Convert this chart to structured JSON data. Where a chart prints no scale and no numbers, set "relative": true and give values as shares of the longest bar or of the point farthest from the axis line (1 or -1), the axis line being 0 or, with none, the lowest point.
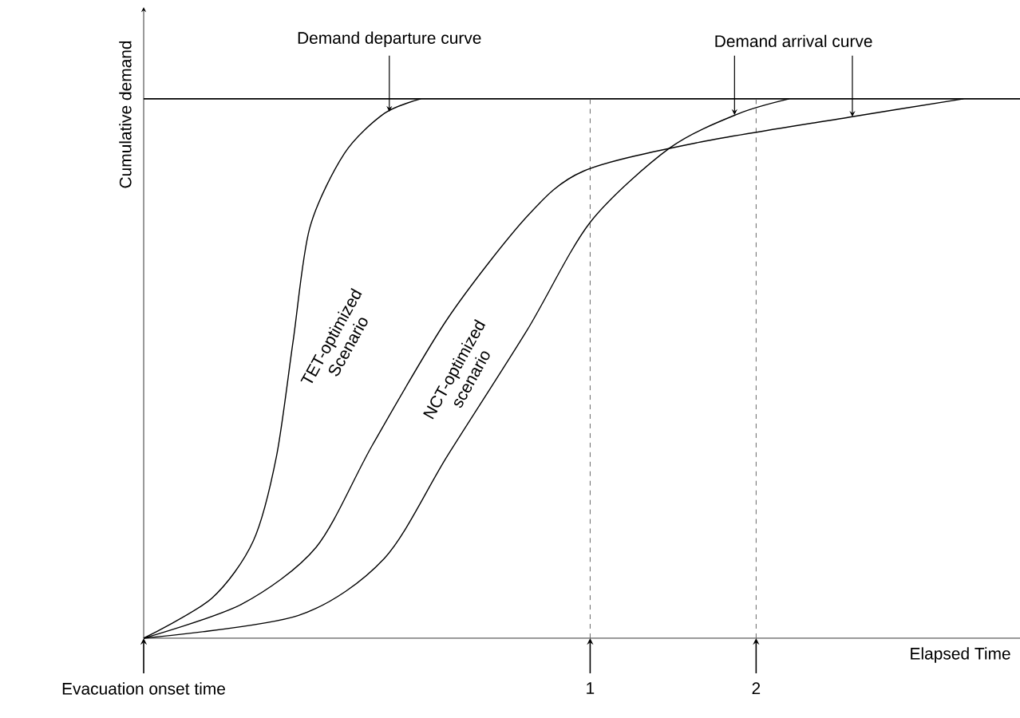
{
  "chart_data": {
    "type": "line",
    "relative": true,
    "ylabel": "Cumulative demand",
    "xlabel": "Elapsed Time",
    "marker": "none",
    "line_style": "solid",
    "grid": false,
    "xlim": [
      -1.69,
      3.59
    ],
    "xticks": [
      {
        "value": -1.69,
        "label": "Evacuation onset time"
      },
      1,
      2
    ],
    "series": [
      {
        "color": "#000000",
        "x": [
          -1.69,
          -1.28,
          -1.03,
          -0.89,
          -0.79,
          -0.69,
          -0.48,
          -0.24,
          -0.02
        ],
        "values": [
          0,
          0.074,
          0.18,
          0.337,
          0.55,
          0.76,
          0.899,
          0.973,
          1
        ]
      },
      {
        "color": "#000000",
        "x": [
          -1.69,
          -1.1,
          -0.65,
          -0.31,
          0.14,
          0.62,
          0.96,
          1.65,
          2.58,
          3.25
        ],
        "values": [
          0,
          0.063,
          0.169,
          0.359,
          0.592,
          0.782,
          0.866,
          0.919,
          0.967,
          1
        ]
      },
      {
        "color": "#000000",
        "x": [
          -1.69,
          -0.76,
          -0.24,
          0.14,
          0.62,
          1.0,
          1.48,
          1.89,
          2.2
        ],
        "values": [
          0,
          0.042,
          0.148,
          0.338,
          0.571,
          0.771,
          0.909,
          0.972,
          1
        ]
      }
    ],
    "ref_lines": [
      {
        "axis": "y",
        "value": 1,
        "line_style": "solid"
      },
      {
        "axis": "x",
        "value": 1,
        "line_style": "dashed"
      },
      {
        "axis": "x",
        "value": 2,
        "line_style": "dashed"
      }
    ],
    "annotations": [
      {
        "text": "Demand departure curve",
        "x": -0.21,
        "y": 0.976
      },
      {
        "text": "Demand arrival curve",
        "x": 1.87,
        "y": 0.97
      },
      "TET-optimized Scenario",
      "NCT-optimized scenario"
    ]
  }
}
